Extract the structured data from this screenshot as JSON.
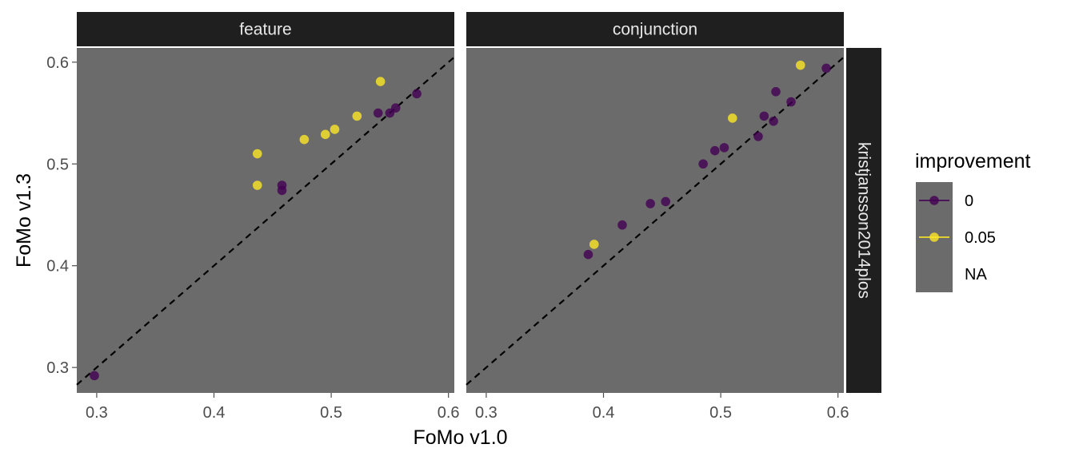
{
  "chart_data": {
    "type": "scatter",
    "xlabel": "FoMo v1.0",
    "ylabel": "FoMo v1.3",
    "xlim": [
      0.283,
      0.605
    ],
    "ylim": [
      0.275,
      0.614
    ],
    "xticks": [
      0.3,
      0.4,
      0.5,
      0.6
    ],
    "yticks": [
      0.3,
      0.4,
      0.5,
      0.6
    ],
    "xtick_labels": [
      "0.3",
      "0.4",
      "0.5",
      "0.6"
    ],
    "ytick_labels": [
      "0.3",
      "0.4",
      "0.5",
      "0.6"
    ],
    "reference_line": "y = x (dashed)",
    "row_strip": "kristjansson2014plos",
    "grid": false,
    "panel_background": "#6b6b6b",
    "strip_background": "#1f1f1f",
    "colors": {
      "0": "#440154",
      "0.05": "#fde725",
      "line": "#000000"
    },
    "legend": {
      "title": "improvement",
      "position": "right",
      "entries": [
        {
          "label": "0",
          "color": "#440154"
        },
        {
          "label": "0.05",
          "color": "#fde725"
        },
        {
          "label": "NA",
          "color": null
        }
      ]
    },
    "panels": [
      {
        "name": "feature",
        "points": [
          {
            "x": 0.298,
            "y": 0.292,
            "improvement": "0"
          },
          {
            "x": 0.458,
            "y": 0.474,
            "improvement": "0"
          },
          {
            "x": 0.458,
            "y": 0.479,
            "improvement": "0"
          },
          {
            "x": 0.54,
            "y": 0.55,
            "improvement": "0"
          },
          {
            "x": 0.55,
            "y": 0.55,
            "improvement": "0"
          },
          {
            "x": 0.555,
            "y": 0.555,
            "improvement": "0"
          },
          {
            "x": 0.573,
            "y": 0.569,
            "improvement": "0"
          },
          {
            "x": 0.437,
            "y": 0.51,
            "improvement": "0.05"
          },
          {
            "x": 0.437,
            "y": 0.479,
            "improvement": "0.05"
          },
          {
            "x": 0.477,
            "y": 0.524,
            "improvement": "0.05"
          },
          {
            "x": 0.495,
            "y": 0.529,
            "improvement": "0.05"
          },
          {
            "x": 0.503,
            "y": 0.534,
            "improvement": "0.05"
          },
          {
            "x": 0.522,
            "y": 0.547,
            "improvement": "0.05"
          },
          {
            "x": 0.542,
            "y": 0.581,
            "improvement": "0.05"
          }
        ]
      },
      {
        "name": "conjunction",
        "points": [
          {
            "x": 0.387,
            "y": 0.411,
            "improvement": "0"
          },
          {
            "x": 0.416,
            "y": 0.44,
            "improvement": "0"
          },
          {
            "x": 0.44,
            "y": 0.461,
            "improvement": "0"
          },
          {
            "x": 0.453,
            "y": 0.463,
            "improvement": "0"
          },
          {
            "x": 0.485,
            "y": 0.5,
            "improvement": "0"
          },
          {
            "x": 0.495,
            "y": 0.513,
            "improvement": "0"
          },
          {
            "x": 0.503,
            "y": 0.516,
            "improvement": "0"
          },
          {
            "x": 0.532,
            "y": 0.527,
            "improvement": "0"
          },
          {
            "x": 0.537,
            "y": 0.547,
            "improvement": "0"
          },
          {
            "x": 0.545,
            "y": 0.542,
            "improvement": "0"
          },
          {
            "x": 0.547,
            "y": 0.571,
            "improvement": "0"
          },
          {
            "x": 0.56,
            "y": 0.561,
            "improvement": "0"
          },
          {
            "x": 0.59,
            "y": 0.594,
            "improvement": "0"
          },
          {
            "x": 0.392,
            "y": 0.421,
            "improvement": "0.05"
          },
          {
            "x": 0.51,
            "y": 0.545,
            "improvement": "0.05"
          },
          {
            "x": 0.568,
            "y": 0.597,
            "improvement": "0.05"
          }
        ]
      }
    ]
  }
}
